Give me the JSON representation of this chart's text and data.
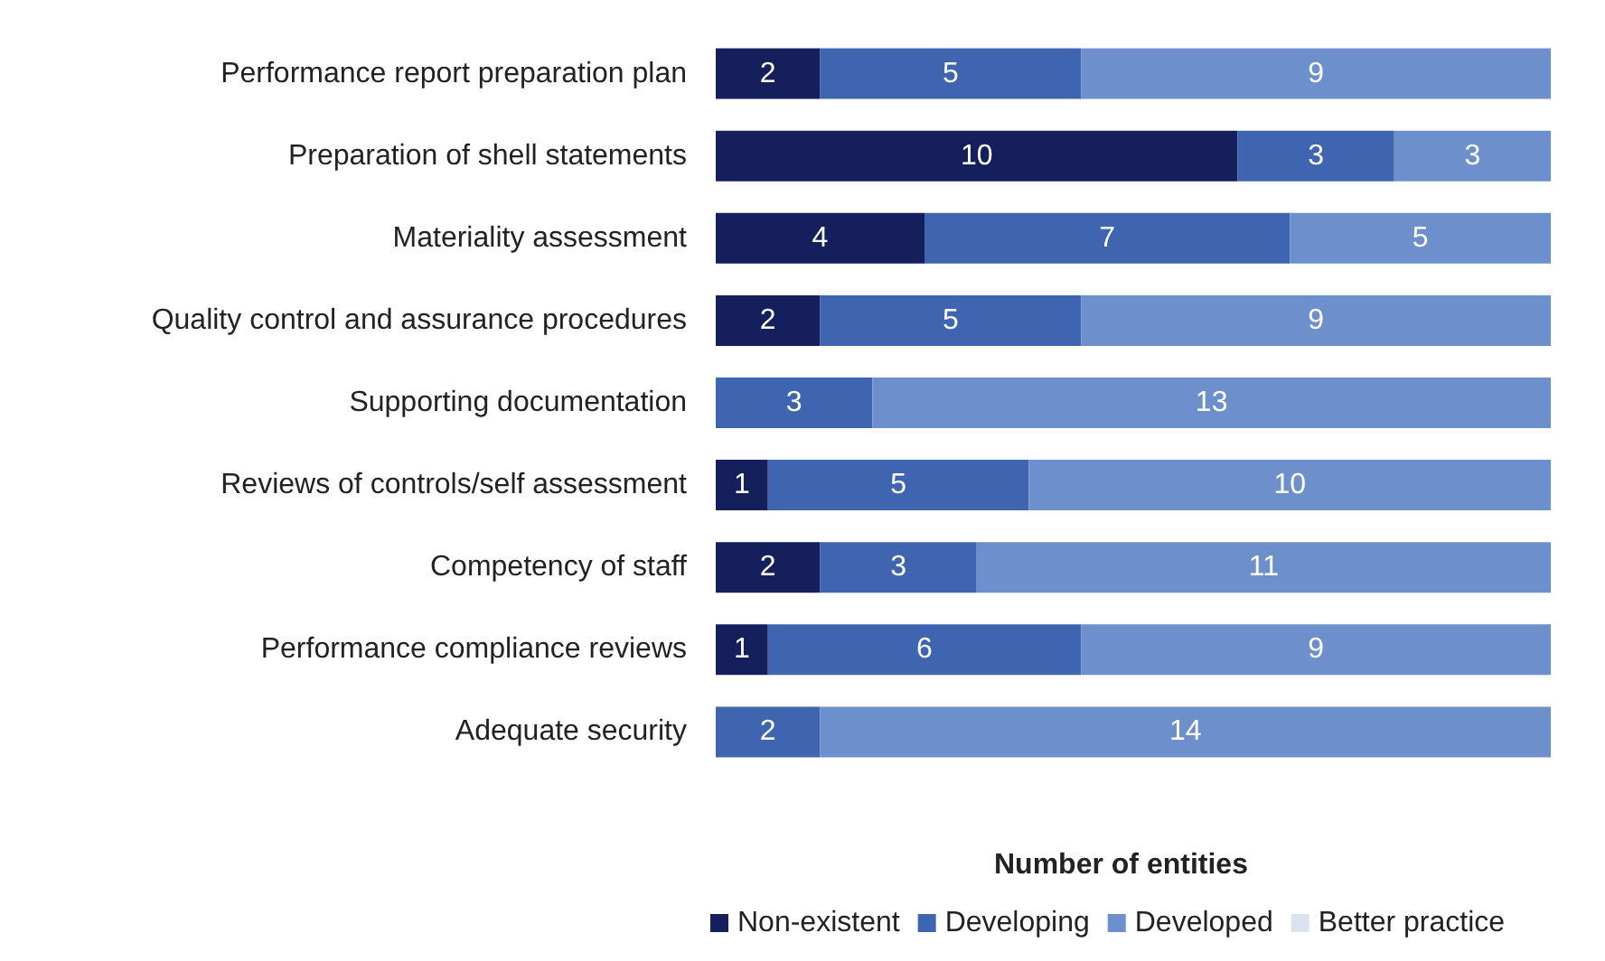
{
  "chart_data": {
    "type": "bar",
    "orientation": "horizontal",
    "stacked": true,
    "xlabel": "Number of entities",
    "categories": [
      "Performance report preparation plan",
      "Preparation of shell statements",
      "Materiality assessment",
      "Quality control and assurance procedures",
      "Supporting documentation",
      "Reviews of controls/self assessment",
      "Competency of staff",
      "Performance compliance reviews",
      "Adequate security"
    ],
    "series": [
      {
        "name": "Non-existent",
        "color": "#141f5c",
        "values": [
          2,
          10,
          4,
          2,
          null,
          1,
          2,
          1,
          null
        ]
      },
      {
        "name": "Developing",
        "color": "#3f64b0",
        "values": [
          5,
          3,
          7,
          5,
          3,
          5,
          3,
          6,
          2
        ]
      },
      {
        "name": "Developed",
        "color": "#6d8fcb",
        "values": [
          9,
          3,
          5,
          9,
          13,
          10,
          11,
          9,
          14
        ]
      },
      {
        "name": "Better practice",
        "color": "#dce3ef",
        "values": [
          null,
          null,
          null,
          null,
          null,
          null,
          null,
          null,
          null
        ]
      }
    ],
    "xlim": [
      0,
      16
    ],
    "data_labels": true,
    "legend": "bottom",
    "grid": false,
    "tick_labels": "y"
  }
}
